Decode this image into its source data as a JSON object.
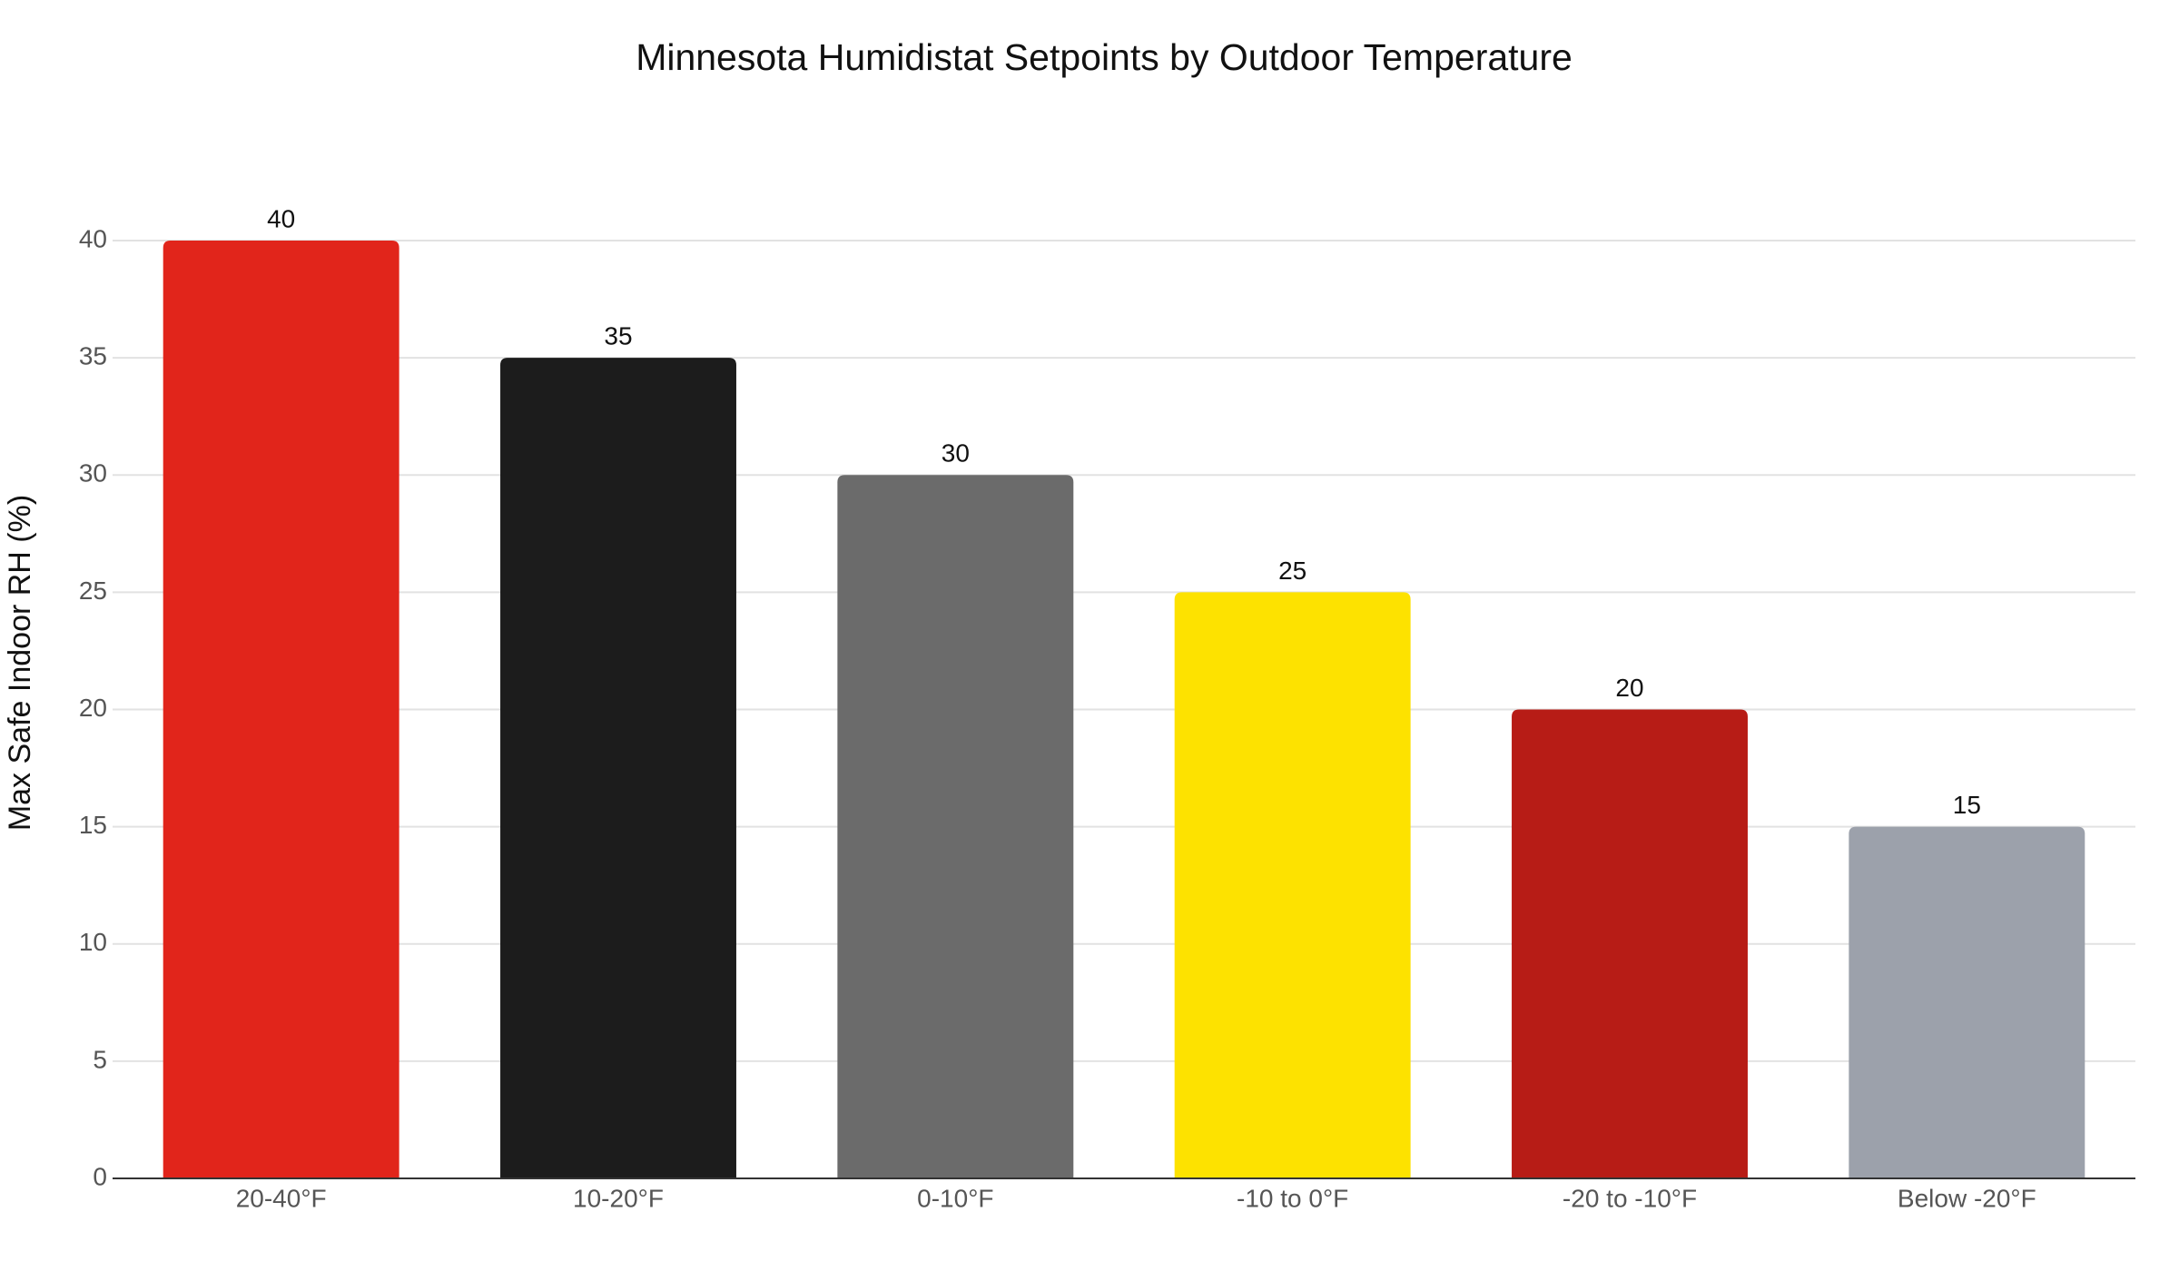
{
  "chart_data": {
    "type": "bar",
    "title": "Minnesota Humidistat Setpoints by Outdoor Temperature",
    "y_label": "Max Safe Indoor RH (%)",
    "categories": [
      "20-40°F",
      "10-20°F",
      "0-10°F",
      "-10 to 0°F",
      "-20 to -10°F",
      "Below -20°F"
    ],
    "values": [
      40,
      35,
      30,
      25,
      20,
      15
    ],
    "colors": [
      "#e1251b",
      "#1c1c1c",
      "#6b6b6b",
      "#fde200",
      "#b71c16",
      "#9ca1ab"
    ],
    "ylim": [
      0,
      40
    ],
    "yticks": [
      0,
      5,
      10,
      15,
      20,
      25,
      30,
      35,
      40
    ],
    "grid": true,
    "value_labels_shown": true
  }
}
